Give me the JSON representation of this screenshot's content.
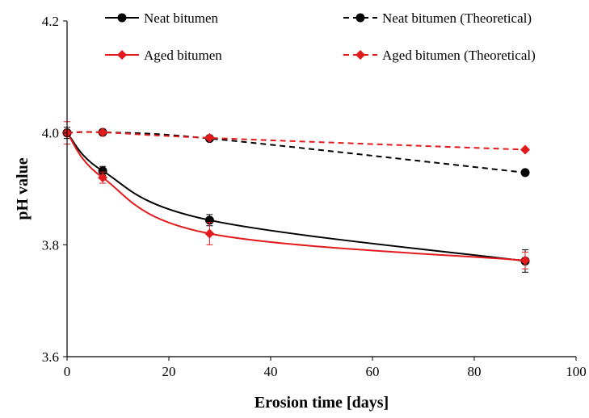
{
  "chart_data": {
    "type": "line",
    "title": "",
    "xlabel": "Erosion time [days]",
    "ylabel": "pH value",
    "xlim": [
      0,
      100
    ],
    "ylim": [
      3.6,
      4.2
    ],
    "xticks": [
      "0",
      "20",
      "40",
      "60",
      "80",
      "100"
    ],
    "yticks": [
      "3.6",
      "3.8",
      "4.0",
      "4.2"
    ],
    "grid": false,
    "legend_position": "top",
    "series": [
      {
        "name": "Neat bitumen",
        "x": [
          0,
          7,
          28,
          90
        ],
        "y": [
          4.0,
          3.932,
          3.844,
          3.771
        ],
        "error": [
          0.01,
          0.008,
          0.01,
          0.02
        ],
        "color": "#000000",
        "marker": "circle",
        "line": "solid",
        "smooth": true
      },
      {
        "name": "Aged bitumen",
        "x": [
          0,
          7,
          28,
          90
        ],
        "y": [
          4.0,
          3.92,
          3.82,
          3.772
        ],
        "error": [
          0.02,
          0.01,
          0.02,
          0.015
        ],
        "color": "#e31a1c",
        "marker": "diamond",
        "line": "solid",
        "smooth": true
      },
      {
        "name": "Neat bitumen (Theoretical)",
        "x": [
          0,
          7,
          28,
          90
        ],
        "y": [
          4.0,
          4.001,
          3.99,
          3.929
        ],
        "error": [],
        "color": "#000000",
        "marker": "circle",
        "line": "dashed",
        "smooth": true
      },
      {
        "name": "Aged bitumen (Theoretical)",
        "x": [
          0,
          7,
          28,
          90
        ],
        "y": [
          4.0,
          4.001,
          3.991,
          3.97
        ],
        "error": [],
        "color": "#e31a1c",
        "marker": "diamond",
        "line": "dashed",
        "smooth": true
      }
    ]
  }
}
